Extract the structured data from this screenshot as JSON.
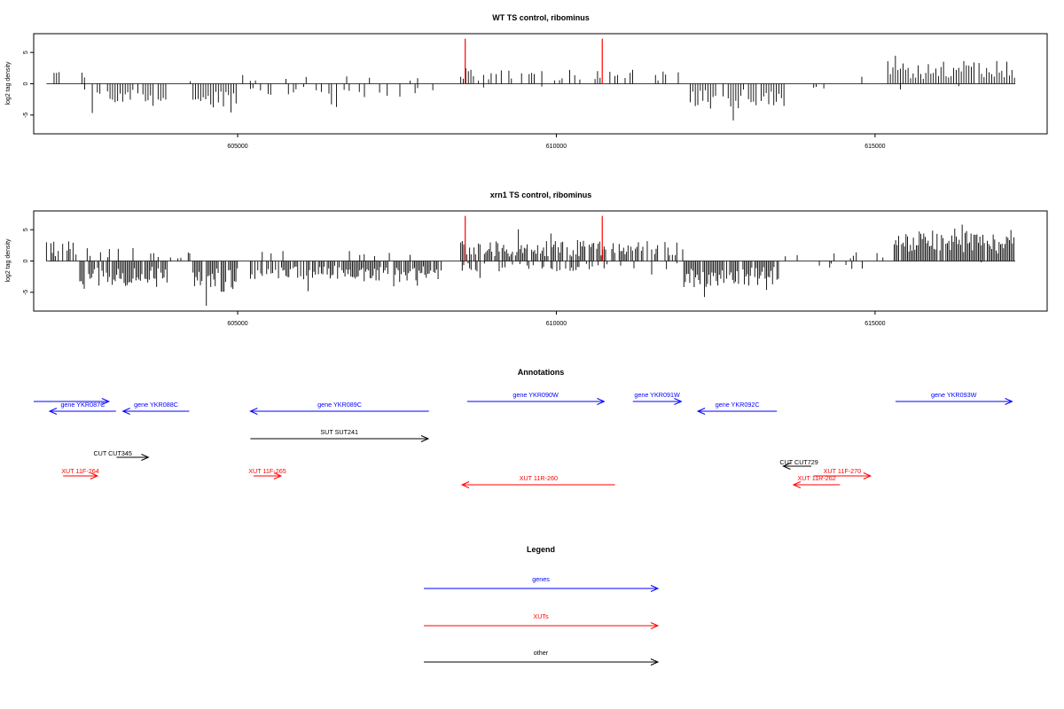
{
  "colors": {
    "gene": "#0000ff",
    "xut": "#ff0000",
    "other": "#000000",
    "highlight": "#ff0000",
    "bars": "#000000"
  },
  "chart_data": [
    {
      "type": "bar",
      "title": "WT TS control, ribominus",
      "ylabel": "log2 tag density",
      "xlabel": "",
      "xlim": [
        601800,
        617700
      ],
      "ylim": [
        -8,
        8
      ],
      "xticks": [
        605000,
        610000,
        615000
      ],
      "yticks": [
        -5,
        0,
        5
      ],
      "grid": false,
      "data_range": [
        602000,
        617200
      ],
      "highlight_lines": [
        608570,
        610720
      ],
      "seed": 11,
      "density": 0.35,
      "regions": [
        {
          "from": 602000,
          "to": 602600,
          "sign": 1,
          "mean": 1.6,
          "p": 0.22
        },
        {
          "from": 602600,
          "to": 603900,
          "sign": -1,
          "mean": 2.6,
          "p": 0.75
        },
        {
          "from": 603900,
          "to": 604300,
          "sign": 1,
          "mean": 1.0,
          "p": 0.08
        },
        {
          "from": 604300,
          "to": 605000,
          "sign": -1,
          "mean": 3.3,
          "p": 0.95
        },
        {
          "from": 605000,
          "to": 605200,
          "sign": 1,
          "mean": 1.0,
          "p": 0.05
        },
        {
          "from": 605200,
          "to": 608100,
          "sign": -1,
          "mean": 1.6,
          "p": 0.4
        },
        {
          "from": 605200,
          "to": 608100,
          "sign": 1,
          "mean": 1.0,
          "p": 0.08
        },
        {
          "from": 608100,
          "to": 608500,
          "sign": 1,
          "mean": 0.8,
          "p": 0.05
        },
        {
          "from": 608500,
          "to": 610800,
          "sign": 1,
          "mean": 1.6,
          "p": 0.5
        },
        {
          "from": 608500,
          "to": 610800,
          "sign": -1,
          "mean": 0.7,
          "p": 0.06
        },
        {
          "from": 610800,
          "to": 612000,
          "sign": 1,
          "mean": 1.6,
          "p": 0.3
        },
        {
          "from": 612100,
          "to": 613600,
          "sign": -1,
          "mean": 2.8,
          "p": 0.9
        },
        {
          "from": 613600,
          "to": 615200,
          "sign": 1,
          "mean": 0.9,
          "p": 0.06
        },
        {
          "from": 613600,
          "to": 615200,
          "sign": -1,
          "mean": 0.9,
          "p": 0.05
        },
        {
          "from": 615200,
          "to": 617200,
          "sign": 1,
          "mean": 2.6,
          "p": 0.95
        },
        {
          "from": 615200,
          "to": 617200,
          "sign": -1,
          "mean": 0.8,
          "p": 0.04
        }
      ]
    },
    {
      "type": "bar",
      "title": "xrn1 TS control, ribominus",
      "ylabel": "log2 tag density",
      "xlabel": "",
      "xlim": [
        601800,
        617700
      ],
      "ylim": [
        -8,
        8
      ],
      "xticks": [
        605000,
        610000,
        615000
      ],
      "yticks": [
        -5,
        0,
        5
      ],
      "grid": false,
      "data_range": [
        602000,
        617200
      ],
      "highlight_lines": [
        608570,
        610720
      ],
      "seed": 29,
      "density": 0.6,
      "regions": [
        {
          "from": 602000,
          "to": 602500,
          "sign": 1,
          "mean": 2.3,
          "p": 0.7
        },
        {
          "from": 602500,
          "to": 603900,
          "sign": -1,
          "mean": 3.0,
          "p": 0.85
        },
        {
          "from": 602500,
          "to": 603900,
          "sign": 1,
          "mean": 1.5,
          "p": 0.15
        },
        {
          "from": 603900,
          "to": 604300,
          "sign": 1,
          "mean": 1.0,
          "p": 0.1
        },
        {
          "from": 604300,
          "to": 605000,
          "sign": -1,
          "mean": 3.6,
          "p": 0.95
        },
        {
          "from": 605000,
          "to": 605200,
          "sign": 1,
          "mean": 1.0,
          "p": 0.05
        },
        {
          "from": 605200,
          "to": 608200,
          "sign": -1,
          "mean": 2.4,
          "p": 0.8
        },
        {
          "from": 605200,
          "to": 608200,
          "sign": 1,
          "mean": 1.2,
          "p": 0.1
        },
        {
          "from": 608200,
          "to": 608500,
          "sign": 1,
          "mean": 0.8,
          "p": 0.1
        },
        {
          "from": 608500,
          "to": 610800,
          "sign": 1,
          "mean": 2.4,
          "p": 0.8
        },
        {
          "from": 608500,
          "to": 610800,
          "sign": -1,
          "mean": 1.2,
          "p": 0.35
        },
        {
          "from": 610800,
          "to": 612000,
          "sign": 1,
          "mean": 2.3,
          "p": 0.55
        },
        {
          "from": 610800,
          "to": 612000,
          "sign": -1,
          "mean": 1.0,
          "p": 0.1
        },
        {
          "from": 612000,
          "to": 613500,
          "sign": -1,
          "mean": 3.0,
          "p": 0.9
        },
        {
          "from": 613500,
          "to": 615300,
          "sign": 1,
          "mean": 1.1,
          "p": 0.12
        },
        {
          "from": 613500,
          "to": 615300,
          "sign": -1,
          "mean": 1.0,
          "p": 0.1
        },
        {
          "from": 615300,
          "to": 617200,
          "sign": 1,
          "mean": 3.6,
          "p": 0.95
        },
        {
          "from": 615300,
          "to": 617200,
          "sign": -1,
          "mean": 0.6,
          "p": 0.03
        }
      ]
    }
  ],
  "annotations": {
    "title": "Annotations",
    "xlim": [
      601800,
      617700
    ],
    "features": [
      {
        "label": "",
        "kind": "gene",
        "start": 601800,
        "end": 602980,
        "strand": "+",
        "row": 0
      },
      {
        "label": "gene YKR087C",
        "kind": "gene",
        "start": 602050,
        "end": 603090,
        "strand": "-",
        "row": 1
      },
      {
        "label": "gene YKR088C",
        "kind": "gene",
        "start": 603200,
        "end": 604240,
        "strand": "-",
        "row": 1
      },
      {
        "label": "gene YKR089C",
        "kind": "gene",
        "start": 605200,
        "end": 608000,
        "strand": "-",
        "row": 1
      },
      {
        "label": "gene YKR090W",
        "kind": "gene",
        "start": 608600,
        "end": 610750,
        "strand": "+",
        "row": 0
      },
      {
        "label": "gene YKR091W",
        "kind": "gene",
        "start": 611200,
        "end": 611960,
        "strand": "+",
        "row": 0
      },
      {
        "label": "gene YKR092C",
        "kind": "gene",
        "start": 612220,
        "end": 613460,
        "strand": "-",
        "row": 1
      },
      {
        "label": "gene YKR093W",
        "kind": "gene",
        "start": 615320,
        "end": 617150,
        "strand": "+",
        "row": 0
      },
      {
        "label": "SUT SUT241",
        "kind": "other",
        "start": 605200,
        "end": 607990,
        "strand": "+",
        "row": 2
      },
      {
        "label": "CUT CUT345",
        "kind": "other",
        "start": 603100,
        "end": 603600,
        "strand": "+",
        "row": 3
      },
      {
        "label": "CUT CUT729",
        "kind": "other",
        "start": 613560,
        "end": 614000,
        "strand": "-",
        "row": 4
      },
      {
        "label": "XUT 11F-264",
        "kind": "xut",
        "start": 602260,
        "end": 602800,
        "strand": "+",
        "row": 5
      },
      {
        "label": "XUT 11F-265",
        "kind": "xut",
        "start": 605250,
        "end": 605680,
        "strand": "+",
        "row": 5
      },
      {
        "label": "XUT 11R-260",
        "kind": "xut",
        "start": 608520,
        "end": 610920,
        "strand": "-",
        "row": 6
      },
      {
        "label": "XUT 11F-270",
        "kind": "xut",
        "start": 614040,
        "end": 614930,
        "strand": "+",
        "row": 5
      },
      {
        "label": "XUT 11R-262",
        "kind": "xut",
        "start": 613720,
        "end": 614450,
        "strand": "-",
        "row": 6
      }
    ]
  },
  "legend": {
    "title": "Legend",
    "items": [
      {
        "label": "genes",
        "kind": "gene"
      },
      {
        "label": "XUTs",
        "kind": "xut"
      },
      {
        "label": "other",
        "kind": "other"
      }
    ]
  }
}
